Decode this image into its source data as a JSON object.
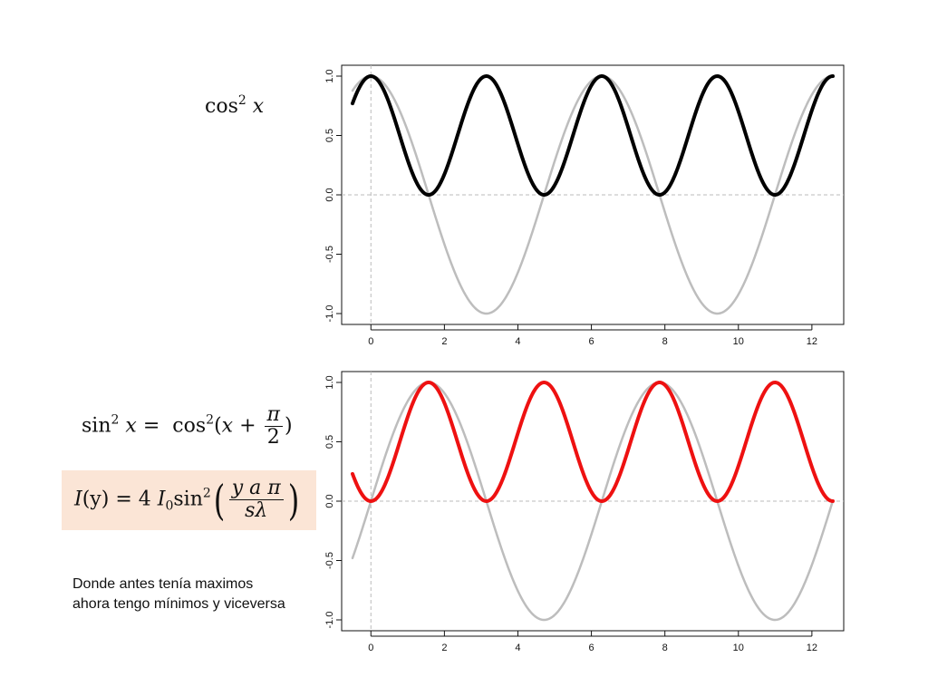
{
  "labels": {
    "cos2_x": {
      "fn": "cos",
      "exp": "2",
      "var": "x"
    },
    "sin2_identity": {
      "fn1": "sin",
      "exp": "2",
      "var": "x",
      "eq": "=",
      "fn2": "cos",
      "open": "(",
      "x": "x",
      "plus": "+",
      "num": "π",
      "den": "2",
      "close": ")"
    },
    "intensity": {
      "I": "I",
      "y_arg": "(y)",
      "eq": "=",
      "four": "4",
      "I0": "I",
      "zero": "0",
      "fn": "sin",
      "exp": "2",
      "num": "y a π",
      "den": "sλ"
    }
  },
  "note": "Donde antes tenía maximos ahora tengo mínimos y viceversa",
  "colors": {
    "top_curve": "#000000",
    "bottom_curve": "#ee1111",
    "reference_curve": "#bdbdbd",
    "box_fill": "#fbe5d6"
  },
  "chart_data": [
    {
      "type": "line",
      "x_range": [
        -0.5,
        12.57
      ],
      "xlim": [
        -0.5,
        12.57
      ],
      "ylim": [
        -1.0,
        1.0
      ],
      "x_ticks": [
        0,
        2,
        4,
        6,
        8,
        10,
        12
      ],
      "y_ticks": [
        -1.0,
        -0.5,
        0.0,
        0.5,
        1.0
      ],
      "x_tick_labels": [
        "0",
        "2",
        "4",
        "6",
        "8",
        "10",
        "12"
      ],
      "y_tick_labels": [
        "-1.0",
        "-0.5",
        "0.0",
        "0.5",
        "1.0"
      ],
      "reference_lines": {
        "h": 0,
        "v": 0
      },
      "series": [
        {
          "function": "cos(x)",
          "color": "#bdbdbd",
          "width": 2.5
        },
        {
          "function": "cos(x)^2",
          "color": "#000000",
          "width": 4
        }
      ]
    },
    {
      "type": "line",
      "x_range": [
        -0.5,
        12.57
      ],
      "xlim": [
        -0.5,
        12.57
      ],
      "ylim": [
        -1.0,
        1.0
      ],
      "x_ticks": [
        0,
        2,
        4,
        6,
        8,
        10,
        12
      ],
      "y_ticks": [
        -1.0,
        -0.5,
        0.0,
        0.5,
        1.0
      ],
      "x_tick_labels": [
        "0",
        "2",
        "4",
        "6",
        "8",
        "10",
        "12"
      ],
      "y_tick_labels": [
        "-1.0",
        "-0.5",
        "0.0",
        "0.5",
        "1.0"
      ],
      "reference_lines": {
        "h": 0,
        "v": 0
      },
      "series": [
        {
          "function": "sin(x)",
          "color": "#bdbdbd",
          "width": 2.5
        },
        {
          "function": "sin(x)^2",
          "color": "#ee1111",
          "width": 4
        }
      ]
    }
  ]
}
